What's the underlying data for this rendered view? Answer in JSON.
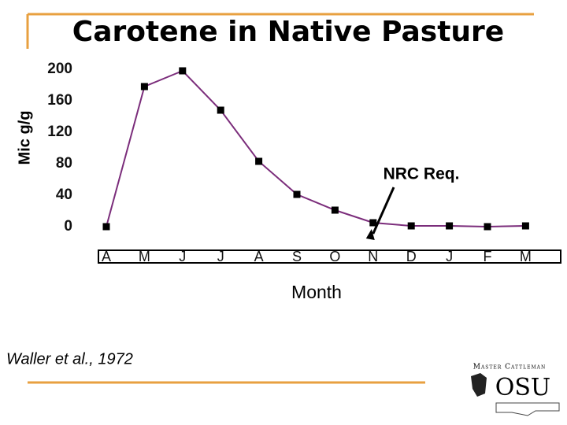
{
  "chart_data": {
    "type": "line",
    "title": "Carotene in Native Pasture",
    "y_label": "Mic g/g",
    "x_label": "Month",
    "categories": [
      "A",
      "M",
      "J",
      "J",
      "A",
      "S",
      "O",
      "N",
      "D",
      "J",
      "F",
      "M"
    ],
    "values": [
      0,
      178,
      198,
      148,
      83,
      41,
      21,
      5,
      1,
      1,
      0,
      1
    ],
    "color": "#7b2d7b",
    "marker_color": "#000000",
    "ylim": [
      0,
      200
    ],
    "yticks": [
      0,
      40,
      80,
      120,
      160,
      200
    ],
    "annotation": {
      "text": "NRC Req.",
      "category_index": 7
    },
    "source": "Waller et al., 1972"
  },
  "logo": {
    "top": "Master Cattleman",
    "bottom": "OSU"
  }
}
